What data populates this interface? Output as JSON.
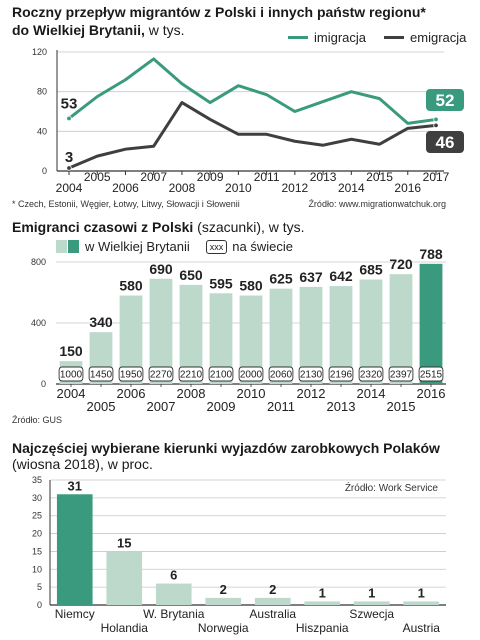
{
  "colors": {
    "teal": "#3a9a7e",
    "dark": "#3f3f3f",
    "pale": "#bcd9cc",
    "grid": "#c8c8c8",
    "axis": "#333333"
  },
  "chart1": {
    "title": "Roczny przepływ migrantów z Polski i innych państw regionu*",
    "title2": "do Wielkiej Brytanii,",
    "unit": " w tys.",
    "footnote": "* Czech, Estonii, Węgier, Łotwy, Litwy, Słowacji i Słowenii",
    "source": "Źródło: www.migrationwatchuk.org"
  },
  "chart2": {
    "title": "Emigranci czasowi z Polski",
    "title_suffix": " (szacunki), w tys.",
    "legend_bars": "w Wielkiej Brytanii",
    "legend_box_sample": "xxx",
    "legend_box": "na świecie",
    "source": "Źródło: GUS"
  },
  "chart3": {
    "title": "Najczęściej wybierane kierunki wyjazdów zarobkowych Polaków",
    "subtitle": "(wiosna 2018), w proc.",
    "source": "Źródło: Work Service"
  },
  "chart_data": [
    {
      "type": "line",
      "x": [
        "2004",
        "2005",
        "2006",
        "2007",
        "2008",
        "2009",
        "2010",
        "2011",
        "2012",
        "2013",
        "2014",
        "2015",
        "2016",
        "2017"
      ],
      "series": [
        {
          "name": "imigracja",
          "values": [
            53,
            75,
            92,
            113,
            88,
            69,
            86,
            77,
            60,
            70,
            80,
            73,
            48,
            52
          ]
        },
        {
          "name": "emigracja",
          "values": [
            3,
            15,
            22,
            25,
            69,
            52,
            37,
            37,
            30,
            26,
            32,
            27,
            43,
            46
          ]
        }
      ],
      "labels": {
        "imigracja_first": "53",
        "imigracja_last": "52",
        "emigracja_first": "3",
        "emigracja_last": "46"
      },
      "yticks": [
        0,
        40,
        80,
        120
      ],
      "ylim": [
        0,
        120
      ],
      "legend_position": "top-right",
      "grid": true
    },
    {
      "type": "bar",
      "categories": [
        "2004",
        "2005",
        "2006",
        "2007",
        "2008",
        "2009",
        "2010",
        "2011",
        "2012",
        "2013",
        "2014",
        "2015",
        "2016"
      ],
      "values": [
        150,
        340,
        580,
        690,
        650,
        595,
        580,
        625,
        637,
        642,
        685,
        720,
        788
      ],
      "world_values": [
        "1000",
        "1450",
        "1950",
        "2270",
        "2210",
        "2100",
        "2000",
        "2060",
        "2130",
        "2196",
        "2320",
        "2397",
        "2515"
      ],
      "yticks": [
        0,
        400,
        800
      ],
      "ylim": [
        0,
        800
      ],
      "grid": true
    },
    {
      "type": "bar",
      "categories": [
        "Niemcy",
        "Holandia",
        "W. Brytania",
        "Norwegia",
        "Australia",
        "Hiszpania",
        "Szwecja",
        "Austria"
      ],
      "values": [
        31,
        15,
        6,
        2,
        2,
        1,
        1,
        1
      ],
      "yticks": [
        0,
        5,
        10,
        15,
        20,
        25,
        30,
        35
      ],
      "ylim": [
        0,
        35
      ],
      "grid": true
    }
  ]
}
